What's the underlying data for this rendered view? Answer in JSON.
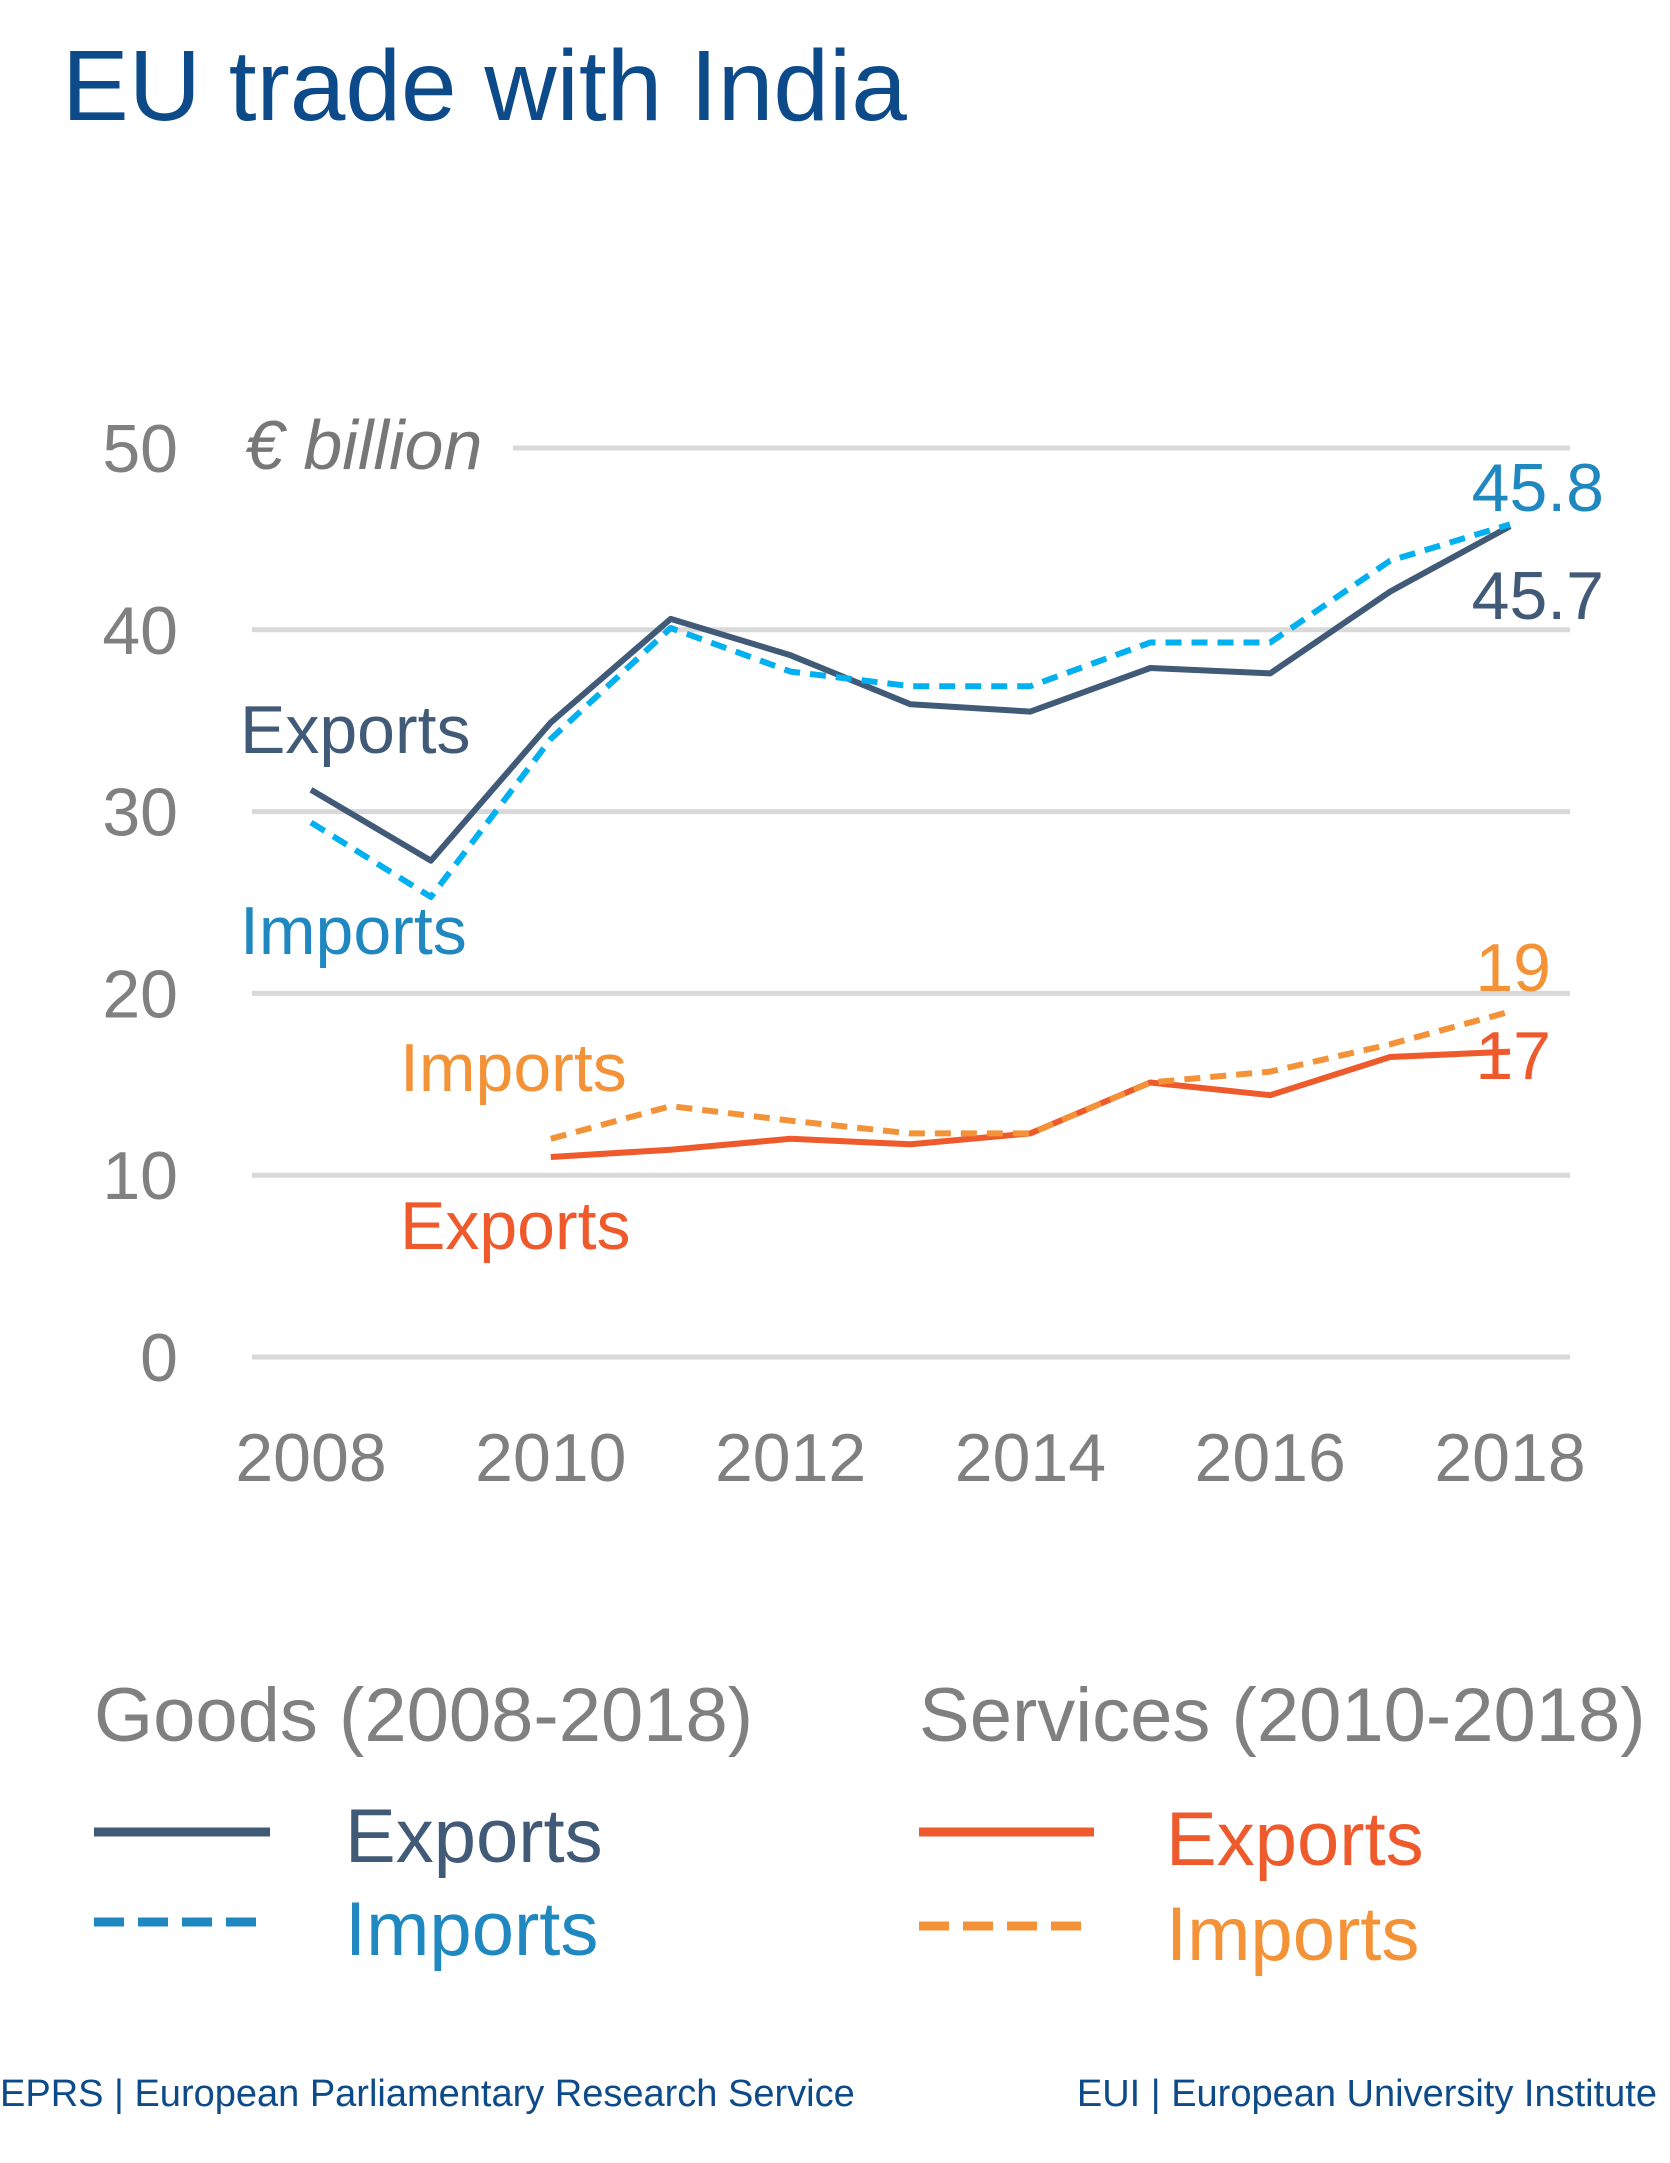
{
  "chart_data": {
    "type": "line",
    "title": "EU trade with India",
    "ylabel": "€ billion",
    "xlabel": "",
    "ylim": [
      0,
      50
    ],
    "xlim": [
      2008,
      2018
    ],
    "yticks": [
      "0",
      "10",
      "20",
      "30",
      "40",
      "50"
    ],
    "xticks": [
      "2008",
      "2010",
      "2012",
      "2014",
      "2016",
      "2018"
    ],
    "grid": "horizontal",
    "legend_placement": "bottom",
    "x": [
      2008,
      2009,
      2010,
      2011,
      2012,
      2013,
      2014,
      2015,
      2016,
      2017,
      2018
    ],
    "series": [
      {
        "name": "Exports",
        "group": "Goods (2008-2018)",
        "color": "#415a78",
        "style": "solid",
        "values": [
          31.2,
          27.3,
          34.9,
          40.6,
          38.6,
          35.9,
          35.5,
          37.9,
          37.6,
          42.1,
          45.7
        ],
        "inline_label": "Exports",
        "end_label": "45.7",
        "label_color": "#415a78"
      },
      {
        "name": "Imports",
        "group": "Goods (2008-2018)",
        "color": "#00b0f0",
        "style": "dashed",
        "values": [
          29.4,
          25.3,
          34.0,
          40.1,
          37.7,
          36.9,
          36.9,
          39.3,
          39.3,
          43.8,
          45.8
        ],
        "inline_label": "Imports",
        "end_label": "45.8",
        "label_color": "#1f88c0"
      },
      {
        "name": "Exports",
        "group": "Services (2010-2018)",
        "color": "#ee5a2c",
        "style": "solid",
        "values": [
          null,
          null,
          11.0,
          11.4,
          12.0,
          11.7,
          12.3,
          15.1,
          14.4,
          16.5,
          16.8
        ],
        "inline_label": "Exports",
        "end_label": "17",
        "label_color": "#ee5a2c"
      },
      {
        "name": "Imports",
        "group": "Services (2010-2018)",
        "color": "#f39237",
        "style": "dashed",
        "values": [
          null,
          null,
          12.0,
          13.8,
          13.0,
          12.3,
          12.3,
          15.1,
          15.7,
          17.2,
          19.0
        ],
        "inline_label": "Imports",
        "end_label": "19",
        "label_color": "#f39237"
      }
    ],
    "legend": {
      "goods_heading": "Goods (2008-2018)",
      "services_heading": "Services (2010-2018)",
      "goods_exports": "Exports",
      "goods_imports": "Imports",
      "services_exports": "Exports",
      "services_imports": "Imports"
    }
  },
  "footer": {
    "left": "EPRS | European Parliamentary Research Service",
    "right": "EUI | European University Institute"
  },
  "colors": {
    "title": "#0d4a8a",
    "axis_text": "#808080",
    "grid": "#d9d9d9"
  }
}
